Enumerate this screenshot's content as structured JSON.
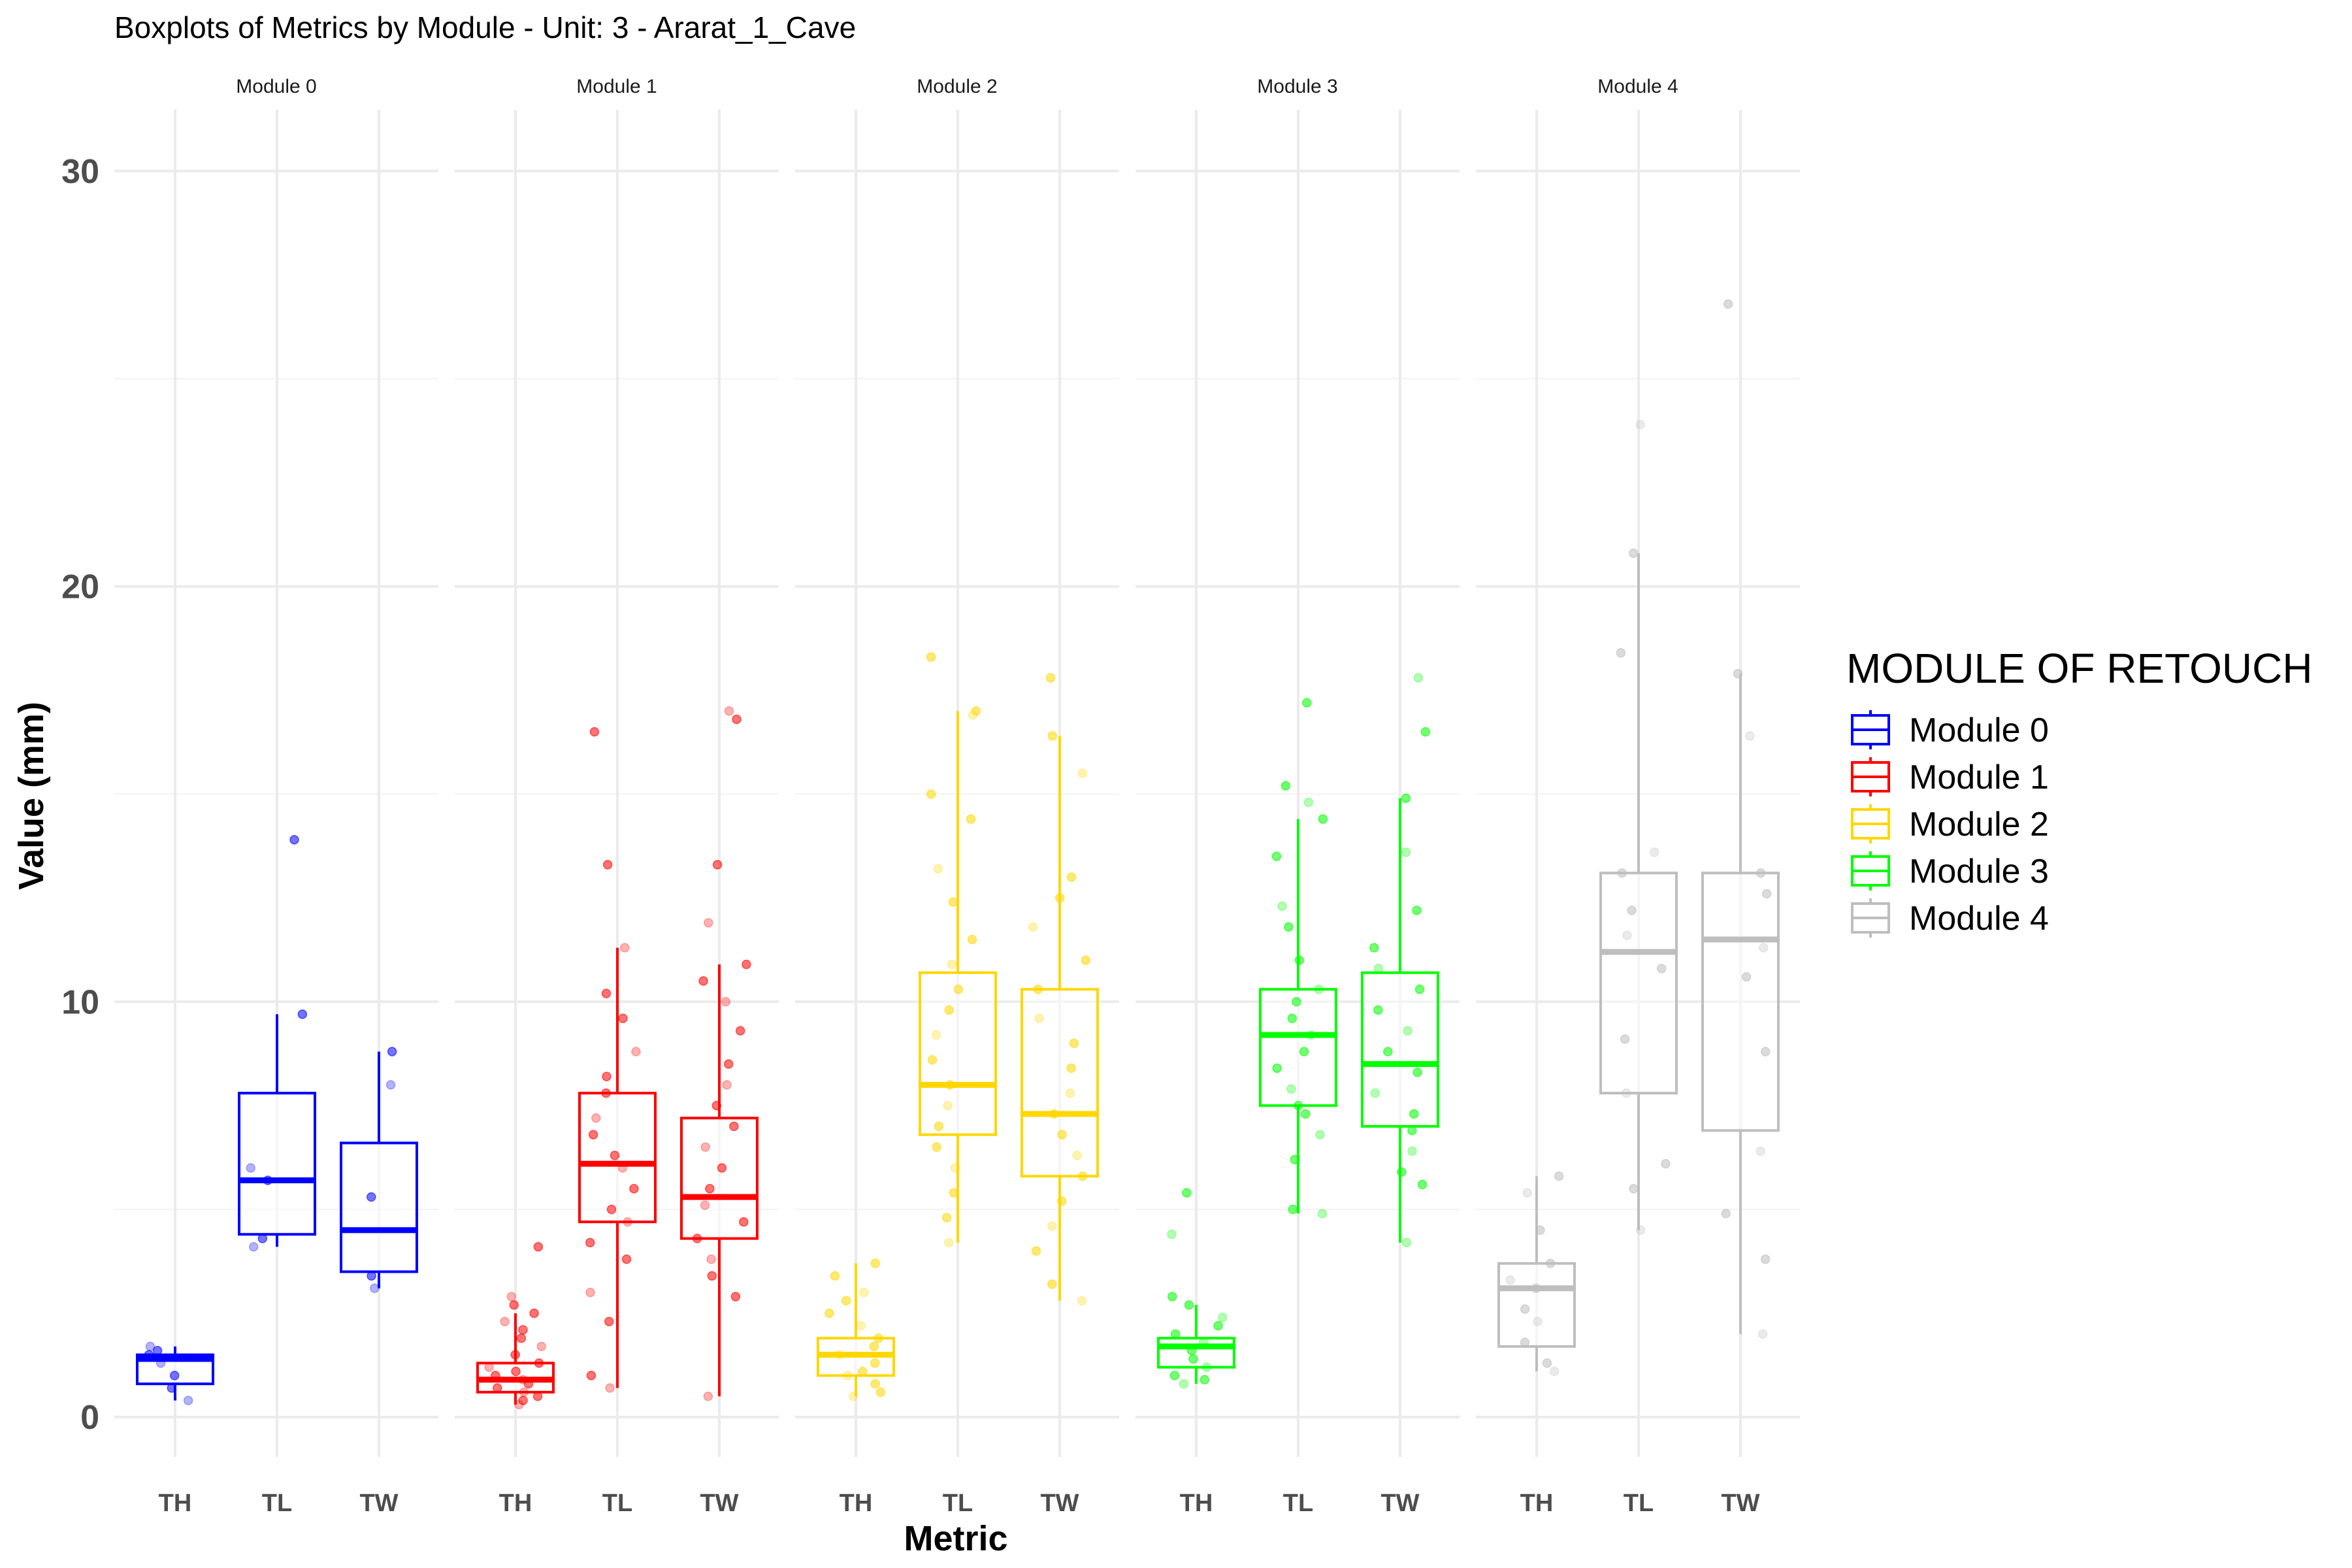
{
  "chart_data": {
    "type": "boxplot",
    "title": "Boxplots of Metrics by Module - Unit: 3 - Ararat_1_Cave",
    "xlabel": "Metric",
    "ylabel": "Value (mm)",
    "ylim": [
      -1.5,
      32
    ],
    "yticks": [
      0,
      10,
      20,
      30
    ],
    "grid": true,
    "legend": {
      "title": "MODULE OF RETOUCH",
      "position": "right",
      "entries": [
        "Module 0",
        "Module 1",
        "Module 2",
        "Module 3",
        "Module 4"
      ]
    },
    "categories": [
      "TH",
      "TL",
      "TW"
    ],
    "panels": [
      {
        "name": "Module 0",
        "color": "#0000ff",
        "boxes": [
          {
            "metric": "TH",
            "min": 0.4,
            "q1": 0.8,
            "median": 1.4,
            "q3": 1.5,
            "max": 1.7
          },
          {
            "metric": "TL",
            "min": 4.1,
            "q1": 4.4,
            "median": 5.7,
            "q3": 7.8,
            "max": 9.7
          },
          {
            "metric": "TW",
            "min": 3.1,
            "q1": 3.5,
            "median": 4.5,
            "q3": 6.6,
            "max": 8.8
          }
        ],
        "points": [
          {
            "metric": "TH",
            "values": [
              0.4,
              0.7,
              1.0,
              1.3,
              1.5,
              1.6,
              1.7
            ]
          },
          {
            "metric": "TL",
            "values": [
              4.1,
              4.3,
              5.7,
              6.0,
              9.7,
              13.9
            ]
          },
          {
            "metric": "TW",
            "values": [
              3.1,
              3.4,
              5.3,
              8.0,
              8.8
            ]
          }
        ]
      },
      {
        "name": "Module 1",
        "color": "#ff0000",
        "boxes": [
          {
            "metric": "TH",
            "min": 0.3,
            "q1": 0.6,
            "median": 0.9,
            "q3": 1.3,
            "max": 2.5
          },
          {
            "metric": "TL",
            "min": 0.7,
            "q1": 4.7,
            "median": 6.1,
            "q3": 7.8,
            "max": 11.3
          },
          {
            "metric": "TW",
            "min": 0.5,
            "q1": 4.3,
            "median": 5.3,
            "q3": 7.2,
            "max": 10.9
          }
        ],
        "points": [
          {
            "metric": "TH",
            "values": [
              0.3,
              0.4,
              0.5,
              0.6,
              0.7,
              0.8,
              0.9,
              1.0,
              1.1,
              1.2,
              1.3,
              1.5,
              1.7,
              1.9,
              2.1,
              2.3,
              2.5,
              2.7,
              2.9,
              4.1
            ]
          },
          {
            "metric": "TL",
            "values": [
              0.7,
              1.0,
              2.3,
              3.0,
              3.8,
              4.2,
              4.7,
              5.0,
              5.5,
              6.0,
              6.3,
              6.8,
              7.2,
              7.8,
              8.2,
              8.8,
              9.6,
              10.2,
              11.3,
              13.3,
              16.5
            ]
          },
          {
            "metric": "TW",
            "values": [
              0.5,
              2.9,
              3.4,
              3.8,
              4.3,
              4.7,
              5.1,
              5.5,
              6.0,
              6.5,
              7.0,
              7.5,
              8.0,
              8.5,
              9.3,
              10.0,
              10.5,
              10.9,
              11.9,
              13.3,
              16.8,
              17.0
            ]
          }
        ]
      },
      {
        "name": "Module 2",
        "color": "#ffd700",
        "boxes": [
          {
            "metric": "TH",
            "min": 0.5,
            "q1": 1.0,
            "median": 1.5,
            "q3": 1.9,
            "max": 3.7
          },
          {
            "metric": "TL",
            "min": 4.2,
            "q1": 6.8,
            "median": 8.0,
            "q3": 10.7,
            "max": 17.0
          },
          {
            "metric": "TW",
            "min": 2.8,
            "q1": 5.8,
            "median": 7.3,
            "q3": 10.3,
            "max": 16.4
          }
        ],
        "points": [
          {
            "metric": "TH",
            "values": [
              0.5,
              0.6,
              0.8,
              1.0,
              1.1,
              1.3,
              1.5,
              1.7,
              1.9,
              2.2,
              2.5,
              2.8,
              3.0,
              3.4,
              3.7
            ]
          },
          {
            "metric": "TL",
            "values": [
              4.2,
              4.8,
              5.4,
              6.0,
              6.5,
              7.0,
              7.5,
              8.0,
              8.6,
              9.2,
              9.8,
              10.3,
              10.9,
              11.5,
              12.4,
              13.2,
              14.4,
              15.0,
              16.9,
              17.0,
              18.3
            ]
          },
          {
            "metric": "TW",
            "values": [
              2.8,
              3.2,
              4.0,
              4.6,
              5.2,
              5.8,
              6.3,
              6.8,
              7.3,
              7.8,
              8.4,
              9.0,
              9.6,
              10.3,
              11.0,
              11.8,
              12.5,
              13.0,
              15.5,
              16.4,
              17.8
            ]
          }
        ]
      },
      {
        "name": "Module 3",
        "color": "#00ff00",
        "boxes": [
          {
            "metric": "TH",
            "min": 0.8,
            "q1": 1.2,
            "median": 1.7,
            "q3": 1.9,
            "max": 2.7
          },
          {
            "metric": "TL",
            "min": 4.9,
            "q1": 7.5,
            "median": 9.2,
            "q3": 10.3,
            "max": 14.4
          },
          {
            "metric": "TW",
            "min": 4.2,
            "q1": 7.0,
            "median": 8.5,
            "q3": 10.7,
            "max": 14.9
          }
        ],
        "points": [
          {
            "metric": "TH",
            "values": [
              0.8,
              0.9,
              1.0,
              1.2,
              1.4,
              1.6,
              1.8,
              2.0,
              2.2,
              2.4,
              2.7,
              2.9,
              4.4,
              5.4
            ]
          },
          {
            "metric": "TL",
            "values": [
              4.9,
              5.0,
              6.2,
              6.8,
              7.3,
              7.5,
              7.9,
              8.4,
              8.8,
              9.2,
              9.6,
              10.0,
              10.3,
              11.0,
              11.8,
              12.3,
              13.5,
              14.4,
              14.8,
              15.2,
              17.2
            ]
          },
          {
            "metric": "TW",
            "values": [
              4.2,
              5.6,
              5.9,
              6.4,
              6.9,
              7.3,
              7.8,
              8.3,
              8.8,
              9.3,
              9.8,
              10.3,
              10.8,
              11.3,
              12.2,
              13.6,
              14.9,
              16.5,
              17.8
            ]
          }
        ]
      },
      {
        "name": "Module 4",
        "color": "#bebebe",
        "boxes": [
          {
            "metric": "TH",
            "min": 1.1,
            "q1": 1.7,
            "median": 3.1,
            "q3": 3.7,
            "max": 5.8
          },
          {
            "metric": "TL",
            "min": 4.5,
            "q1": 7.8,
            "median": 11.2,
            "q3": 13.1,
            "max": 20.8
          },
          {
            "metric": "TW",
            "min": 2.0,
            "q1": 6.9,
            "median": 11.5,
            "q3": 13.1,
            "max": 17.9
          }
        ],
        "points": [
          {
            "metric": "TH",
            "values": [
              1.1,
              1.3,
              1.8,
              2.3,
              2.6,
              3.1,
              3.3,
              3.7,
              4.5,
              5.4,
              5.8
            ]
          },
          {
            "metric": "TL",
            "values": [
              4.5,
              5.5,
              6.1,
              7.8,
              9.1,
              10.8,
              11.6,
              12.2,
              13.1,
              13.6,
              18.4,
              20.8,
              23.9
            ]
          },
          {
            "metric": "TW",
            "values": [
              2.0,
              3.8,
              4.9,
              6.4,
              8.8,
              10.6,
              11.3,
              12.6,
              13.1,
              16.4,
              17.9,
              26.8
            ]
          }
        ]
      }
    ]
  }
}
